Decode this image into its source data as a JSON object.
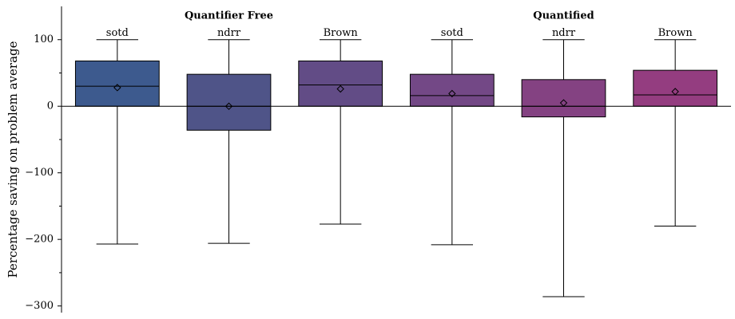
{
  "chart_data": {
    "type": "box",
    "ylabel": "Percentage saving on problem average",
    "ylim": [
      -310,
      150
    ],
    "yticks": [
      {
        "value": -300,
        "label": "−300"
      },
      {
        "value": -200,
        "label": "−200"
      },
      {
        "value": -100,
        "label": "−100"
      },
      0,
      100
    ],
    "yminorticks": [
      -250,
      -150,
      -50,
      50
    ],
    "zero_line": true,
    "groups": [
      {
        "name": "Quantifier Free",
        "boxes": [
          {
            "name": "sotd",
            "color": "#3d5a8e",
            "whislo": -207,
            "q1": 0,
            "med": 30,
            "q3": 68,
            "whishi": 100,
            "mean": 28
          },
          {
            "name": "ndrr",
            "color": "#4f5488",
            "whislo": -206,
            "q1": -36,
            "med": 0,
            "q3": 48,
            "whishi": 100,
            "mean": 0
          },
          {
            "name": "Brown",
            "color": "#624c86",
            "whislo": -177,
            "q1": 0,
            "med": 32,
            "q3": 68,
            "whishi": 100,
            "mean": 26
          }
        ]
      },
      {
        "name": "Quantified",
        "boxes": [
          {
            "name": "sotd",
            "color": "#734886",
            "whislo": -208,
            "q1": 0,
            "med": 16,
            "q3": 48,
            "whishi": 100,
            "mean": 19
          },
          {
            "name": "ndrr",
            "color": "#844282",
            "whislo": -286,
            "q1": -16,
            "med": 0,
            "q3": 40,
            "whishi": 100,
            "mean": 5
          },
          {
            "name": "Brown",
            "color": "#943d80",
            "whislo": -180,
            "q1": 0,
            "med": 17,
            "q3": 54,
            "whishi": 100,
            "mean": 22
          }
        ]
      }
    ]
  }
}
